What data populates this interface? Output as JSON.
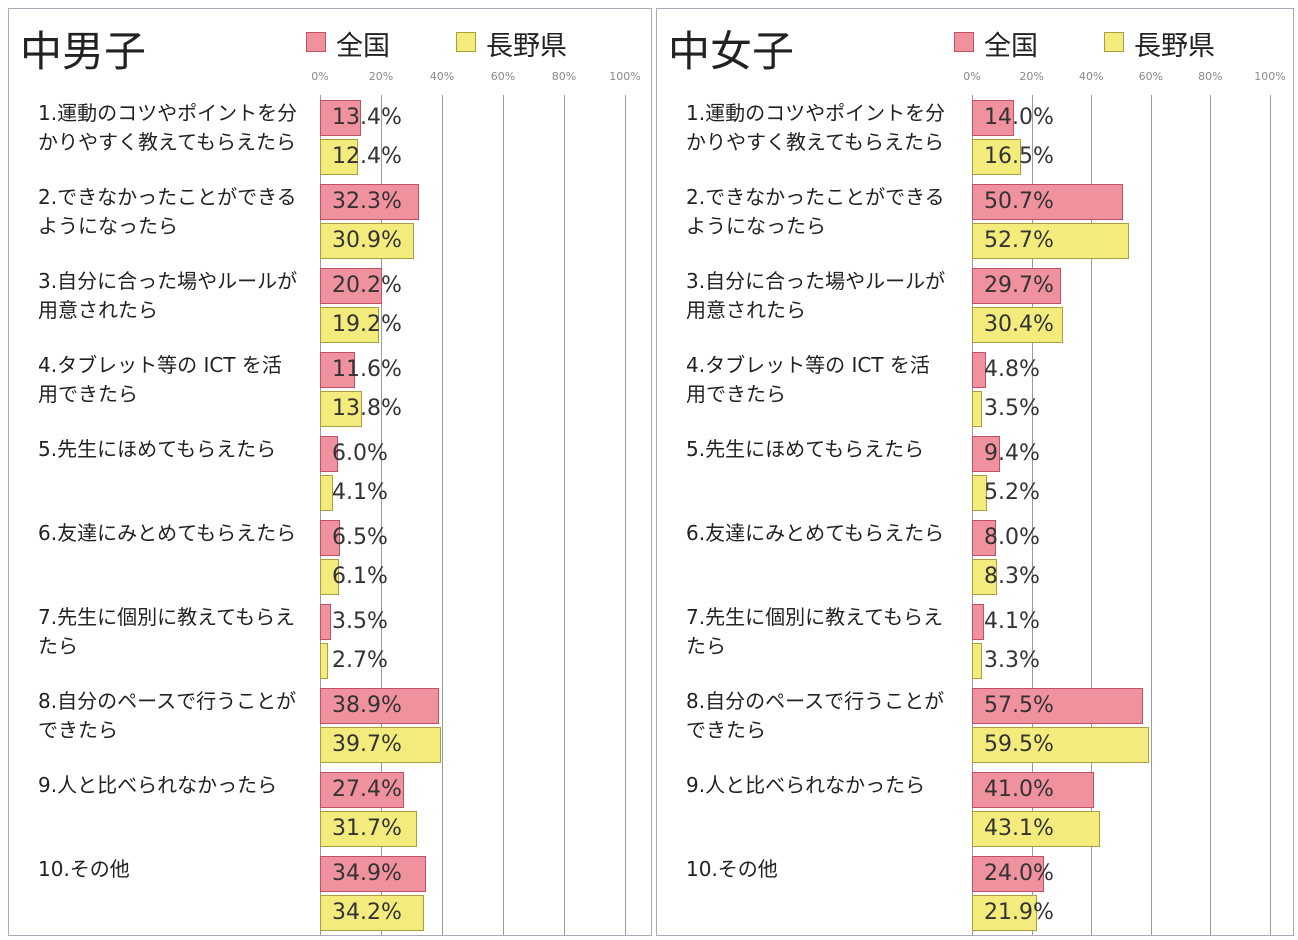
{
  "chart_data": [
    {
      "type": "barh",
      "title": "中男子",
      "categories": [
        "1.運動のコツやポイントを分かりやすく教えてもらえたら",
        "2.できなかったことができるようになったら",
        "3.自分に合った場やルールが用意されたら",
        "4.タブレット等の ICT を活用できたら",
        "5.先生にほめてもらえたら",
        "6.友達にみとめてもらえたら",
        "7.先生に個別に教えてもらえたら",
        "8.自分のペースで行うことができたら",
        "9.人と比べられなかったら",
        "10.その他"
      ],
      "series": [
        {
          "name": "全国",
          "color": "#f0919e",
          "values": [
            13.4,
            32.3,
            20.2,
            11.6,
            6.0,
            6.5,
            3.5,
            38.9,
            27.4,
            34.9
          ],
          "value_labels": [
            "13.4%",
            "32.3%",
            "20.2%",
            "11.6%",
            "6.0%",
            "6.5%",
            "3.5%",
            "38.9%",
            "27.4%",
            "34.9%"
          ]
        },
        {
          "name": "長野県",
          "color": "#f3ec7c",
          "values": [
            12.4,
            30.9,
            19.2,
            13.8,
            4.1,
            6.1,
            2.7,
            39.7,
            31.7,
            34.2
          ],
          "value_labels": [
            "12.4%",
            "30.9%",
            "19.2%",
            "13.8%",
            "4.1%",
            "6.1%",
            "2.7%",
            "39.7%",
            "31.7%",
            "34.2%"
          ]
        }
      ],
      "xlim": [
        0,
        100
      ],
      "xticks": [
        {
          "value": 0,
          "label": "0%"
        },
        {
          "value": 20,
          "label": "20%"
        },
        {
          "value": 40,
          "label": "40%"
        },
        {
          "value": 60,
          "label": "60%"
        },
        {
          "value": 80,
          "label": "80%"
        },
        {
          "value": 100,
          "label": "100%"
        }
      ],
      "grid": true
    },
    {
      "type": "barh",
      "title": "中女子",
      "categories": [
        "1.運動のコツやポイントを分かりやすく教えてもらえたら",
        "2.できなかったことができるようになったら",
        "3.自分に合った場やルールが用意されたら",
        "4.タブレット等の ICT を活用できたら",
        "5.先生にほめてもらえたら",
        "6.友達にみとめてもらえたら",
        "7.先生に個別に教えてもらえたら",
        "8.自分のペースで行うことができたら",
        "9.人と比べられなかったら",
        "10.その他"
      ],
      "series": [
        {
          "name": "全国",
          "color": "#f0919e",
          "values": [
            14.0,
            50.7,
            29.7,
            4.8,
            9.4,
            8.0,
            4.1,
            57.5,
            41.0,
            24.0
          ],
          "value_labels": [
            "14.0%",
            "50.7%",
            "29.7%",
            "4.8%",
            "9.4%",
            "8.0%",
            "4.1%",
            "57.5%",
            "41.0%",
            "24.0%"
          ]
        },
        {
          "name": "長野県",
          "color": "#f3ec7c",
          "values": [
            16.5,
            52.7,
            30.4,
            3.5,
            5.2,
            8.3,
            3.3,
            59.5,
            43.1,
            21.9
          ],
          "value_labels": [
            "16.5%",
            "52.7%",
            "30.4%",
            "3.5%",
            "5.2%",
            "8.3%",
            "3.3%",
            "59.5%",
            "43.1%",
            "21.9%"
          ]
        }
      ],
      "xlim": [
        0,
        100
      ],
      "xticks": [
        {
          "value": 0,
          "label": "0%"
        },
        {
          "value": 20,
          "label": "20%"
        },
        {
          "value": 40,
          "label": "40%"
        },
        {
          "value": 60,
          "label": "60%"
        },
        {
          "value": 80,
          "label": "80%"
        },
        {
          "value": 100,
          "label": "100%"
        }
      ],
      "grid": true
    }
  ]
}
